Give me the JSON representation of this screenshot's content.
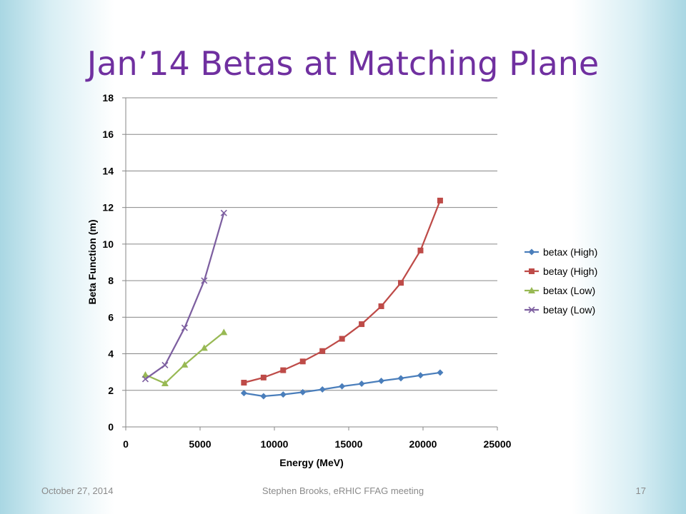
{
  "slide": {
    "title": "Jan’14 Betas at Matching Plane",
    "footer_date": "October 27, 2014",
    "footer_center": "Stephen Brooks, eRHIC FFAG meeting",
    "page_number": "17"
  },
  "chart_data": {
    "type": "line",
    "xlabel": "Energy (MeV)",
    "ylabel": "Beta Function (m)",
    "xlim": [
      0,
      25000
    ],
    "ylim": [
      0,
      18
    ],
    "xticks": [
      0,
      5000,
      10000,
      15000,
      20000,
      25000
    ],
    "yticks": [
      0,
      2,
      4,
      6,
      8,
      10,
      12,
      14,
      16,
      18
    ],
    "grid": "horizontal",
    "legend_position": "right",
    "series": [
      {
        "name": "betax (High)",
        "color": "#4a7ebb",
        "marker": "diamond",
        "x": [
          7950,
          9270,
          10590,
          11910,
          13230,
          14550,
          15870,
          17190,
          18510,
          19830,
          21150
        ],
        "y": [
          1.85,
          1.68,
          1.77,
          1.9,
          2.05,
          2.22,
          2.36,
          2.52,
          2.66,
          2.82,
          2.97
        ]
      },
      {
        "name": "betay (High)",
        "color": "#be4b48",
        "marker": "square",
        "x": [
          7950,
          9270,
          10590,
          11910,
          13230,
          14550,
          15870,
          17190,
          18510,
          19830,
          21150
        ],
        "y": [
          2.42,
          2.7,
          3.1,
          3.58,
          4.15,
          4.82,
          5.62,
          6.6,
          7.88,
          9.65,
          12.38
        ]
      },
      {
        "name": "betax (Low)",
        "color": "#98b954",
        "marker": "triangle",
        "x": [
          1320,
          2640,
          3960,
          5280,
          6600
        ],
        "y": [
          2.85,
          2.38,
          3.4,
          4.32,
          5.18
        ]
      },
      {
        "name": "betay (Low)",
        "color": "#7d5fa0",
        "marker": "x",
        "x": [
          1320,
          2640,
          3960,
          5280,
          6600
        ],
        "y": [
          2.62,
          3.38,
          5.42,
          8.0,
          11.7
        ]
      }
    ]
  }
}
